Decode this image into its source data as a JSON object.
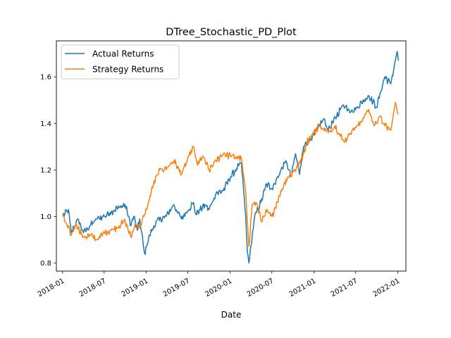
{
  "chart_data": {
    "type": "line",
    "title": "DTree_Stochastic_PD_Plot",
    "xlabel": "Date",
    "ylabel": "",
    "x_axis_type": "date",
    "xlim": [
      "2017-12-05",
      "2022-02-05"
    ],
    "ylim": [
      0.765,
      1.755
    ],
    "grid": false,
    "legend_position": "upper left",
    "x_ticks": [
      {
        "value": "2018-01-01",
        "label": "2018-01"
      },
      {
        "value": "2018-07-01",
        "label": "2018-07"
      },
      {
        "value": "2019-01-01",
        "label": "2019-01"
      },
      {
        "value": "2019-07-01",
        "label": "2019-07"
      },
      {
        "value": "2020-01-01",
        "label": "2020-01"
      },
      {
        "value": "2020-07-01",
        "label": "2020-07"
      },
      {
        "value": "2021-01-01",
        "label": "2021-01"
      },
      {
        "value": "2021-07-01",
        "label": "2021-07"
      },
      {
        "value": "2022-01-01",
        "label": "2022-01"
      }
    ],
    "y_ticks": [
      {
        "value": 0.8,
        "label": "0.8"
      },
      {
        "value": 1.0,
        "label": "1.0"
      },
      {
        "value": 1.2,
        "label": "1.2"
      },
      {
        "value": 1.4,
        "label": "1.4"
      },
      {
        "value": 1.6,
        "label": "1.6"
      }
    ],
    "series": [
      {
        "name": "Actual Returns",
        "color": "#1f77b4",
        "points": [
          [
            "2018-01-02",
            1.0
          ],
          [
            "2018-01-26",
            1.03
          ],
          [
            "2018-02-08",
            0.93
          ],
          [
            "2018-03-09",
            0.99
          ],
          [
            "2018-04-02",
            0.93
          ],
          [
            "2018-05-01",
            0.96
          ],
          [
            "2018-06-01",
            0.99
          ],
          [
            "2018-07-02",
            1.0
          ],
          [
            "2018-08-01",
            1.02
          ],
          [
            "2018-09-04",
            1.04
          ],
          [
            "2018-10-01",
            1.05
          ],
          [
            "2018-10-26",
            0.96
          ],
          [
            "2018-11-07",
            1.0
          ],
          [
            "2018-11-23",
            0.94
          ],
          [
            "2018-12-03",
            0.99
          ],
          [
            "2018-12-24",
            0.84
          ],
          [
            "2019-01-15",
            0.92
          ],
          [
            "2019-02-15",
            0.98
          ],
          [
            "2019-03-29",
            1.0
          ],
          [
            "2019-04-30",
            1.05
          ],
          [
            "2019-06-03",
            0.99
          ],
          [
            "2019-07-26",
            1.06
          ],
          [
            "2019-08-05",
            1.01
          ],
          [
            "2019-09-13",
            1.05
          ],
          [
            "2019-10-02",
            1.03
          ],
          [
            "2019-11-01",
            1.1
          ],
          [
            "2019-12-02",
            1.11
          ],
          [
            "2020-01-02",
            1.17
          ],
          [
            "2020-02-19",
            1.23
          ],
          [
            "2020-03-09",
            1.0
          ],
          [
            "2020-03-16",
            0.85
          ],
          [
            "2020-03-23",
            0.8
          ],
          [
            "2020-04-17",
            1.0
          ],
          [
            "2020-05-14",
            1.06
          ],
          [
            "2020-06-08",
            1.14
          ],
          [
            "2020-07-01",
            1.12
          ],
          [
            "2020-08-31",
            1.24
          ],
          [
            "2020-09-23",
            1.17
          ],
          [
            "2020-10-12",
            1.27
          ],
          [
            "2020-10-30",
            1.18
          ],
          [
            "2020-11-16",
            1.3
          ],
          [
            "2020-12-31",
            1.35
          ],
          [
            "2021-02-12",
            1.42
          ],
          [
            "2021-03-04",
            1.37
          ],
          [
            "2021-05-07",
            1.48
          ],
          [
            "2021-06-18",
            1.45
          ],
          [
            "2021-08-27",
            1.52
          ],
          [
            "2021-09-30",
            1.47
          ],
          [
            "2021-11-05",
            1.6
          ],
          [
            "2021-12-01",
            1.57
          ],
          [
            "2021-12-29",
            1.71
          ],
          [
            "2022-01-03",
            1.67
          ]
        ]
      },
      {
        "name": "Strategy Returns",
        "color": "#ff7f0e",
        "points": [
          [
            "2018-01-02",
            1.0
          ],
          [
            "2018-02-08",
            0.92
          ],
          [
            "2018-03-01",
            0.97
          ],
          [
            "2018-04-02",
            0.91
          ],
          [
            "2018-05-01",
            0.92
          ],
          [
            "2018-06-01",
            0.9
          ],
          [
            "2018-07-02",
            0.93
          ],
          [
            "2018-08-01",
            0.94
          ],
          [
            "2018-09-04",
            0.96
          ],
          [
            "2018-10-01",
            0.98
          ],
          [
            "2018-10-26",
            0.91
          ],
          [
            "2018-11-14",
            0.97
          ],
          [
            "2018-12-03",
            0.95
          ],
          [
            "2019-01-02",
            1.03
          ],
          [
            "2019-02-01",
            1.14
          ],
          [
            "2019-03-01",
            1.2
          ],
          [
            "2019-04-01",
            1.21
          ],
          [
            "2019-05-01",
            1.24
          ],
          [
            "2019-06-03",
            1.18
          ],
          [
            "2019-07-24",
            1.3
          ],
          [
            "2019-08-12",
            1.22
          ],
          [
            "2019-09-03",
            1.26
          ],
          [
            "2019-10-02",
            1.2
          ],
          [
            "2019-11-01",
            1.24
          ],
          [
            "2019-12-02",
            1.27
          ],
          [
            "2020-01-02",
            1.26
          ],
          [
            "2020-02-19",
            1.25
          ],
          [
            "2020-03-09",
            1.1
          ],
          [
            "2020-03-23",
            0.87
          ],
          [
            "2020-04-06",
            1.05
          ],
          [
            "2020-04-22",
            1.06
          ],
          [
            "2020-05-20",
            0.98
          ],
          [
            "2020-06-08",
            1.02
          ],
          [
            "2020-07-01",
            1.0
          ],
          [
            "2020-08-03",
            1.09
          ],
          [
            "2020-09-01",
            1.16
          ],
          [
            "2020-10-01",
            1.19
          ],
          [
            "2020-11-02",
            1.23
          ],
          [
            "2020-12-01",
            1.32
          ],
          [
            "2020-12-31",
            1.36
          ],
          [
            "2021-01-26",
            1.39
          ],
          [
            "2021-03-04",
            1.36
          ],
          [
            "2021-04-01",
            1.39
          ],
          [
            "2021-05-12",
            1.32
          ],
          [
            "2021-06-15",
            1.37
          ],
          [
            "2021-07-12",
            1.39
          ],
          [
            "2021-08-27",
            1.46
          ],
          [
            "2021-09-20",
            1.39
          ],
          [
            "2021-10-13",
            1.43
          ],
          [
            "2021-11-05",
            1.39
          ],
          [
            "2021-12-01",
            1.37
          ],
          [
            "2021-12-22",
            1.49
          ],
          [
            "2022-01-03",
            1.44
          ]
        ]
      }
    ]
  }
}
